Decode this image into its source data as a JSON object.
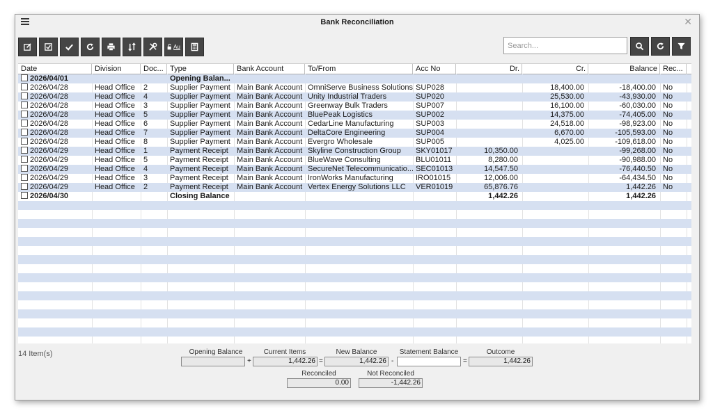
{
  "window": {
    "title": "Bank Reconciliation"
  },
  "toolbar": {
    "buttons": [
      {
        "name": "edit-button",
        "icon": "edit-icon"
      },
      {
        "name": "check-square-button",
        "icon": "checkbox-icon"
      },
      {
        "name": "confirm-button",
        "icon": "checkmark-icon"
      },
      {
        "name": "refresh-button",
        "icon": "refresh-icon"
      },
      {
        "name": "print-button",
        "icon": "printer-icon"
      },
      {
        "name": "sort-button",
        "icon": "sort-icon"
      },
      {
        "name": "tools-button",
        "icon": "tools-icon"
      },
      {
        "name": "auto-unlock-button",
        "icon": "unlock-icon",
        "label": "Au"
      },
      {
        "name": "calculator-button",
        "icon": "calculator-icon"
      }
    ],
    "search_placeholder": "Search...",
    "right_buttons": [
      {
        "name": "search-button",
        "icon": "search-icon"
      },
      {
        "name": "reload-button",
        "icon": "refresh-icon"
      },
      {
        "name": "filter-button",
        "icon": "filter-icon"
      }
    ]
  },
  "columns": [
    "Date",
    "Division",
    "Doc...",
    "Type",
    "Bank Account",
    "To/From",
    "Acc No",
    "Dr.",
    "Cr.",
    "Balance",
    "Rec..."
  ],
  "rows": [
    {
      "date": "2026/04/01",
      "division": "",
      "doc": "",
      "type": "Opening Balan...",
      "bank": "",
      "to": "",
      "acc": "",
      "dr": "",
      "cr": "",
      "balance": "",
      "rec": "",
      "bold": true
    },
    {
      "date": "2026/04/28",
      "division": "Head Office",
      "doc": "2",
      "type": "Supplier Payment",
      "bank": "Main Bank Account",
      "to": "OmniServe Business Solutions",
      "acc": "SUP028",
      "dr": "",
      "cr": "18,400.00",
      "balance": "-18,400.00",
      "rec": "No"
    },
    {
      "date": "2026/04/28",
      "division": "Head Office",
      "doc": "4",
      "type": "Supplier Payment",
      "bank": "Main Bank Account",
      "to": "Unity Industrial Traders",
      "acc": "SUP020",
      "dr": "",
      "cr": "25,530.00",
      "balance": "-43,930.00",
      "rec": "No"
    },
    {
      "date": "2026/04/28",
      "division": "Head Office",
      "doc": "3",
      "type": "Supplier Payment",
      "bank": "Main Bank Account",
      "to": "Greenway Bulk Traders",
      "acc": "SUP007",
      "dr": "",
      "cr": "16,100.00",
      "balance": "-60,030.00",
      "rec": "No"
    },
    {
      "date": "2026/04/28",
      "division": "Head Office",
      "doc": "5",
      "type": "Supplier Payment",
      "bank": "Main Bank Account",
      "to": "BluePeak Logistics",
      "acc": "SUP002",
      "dr": "",
      "cr": "14,375.00",
      "balance": "-74,405.00",
      "rec": "No"
    },
    {
      "date": "2026/04/28",
      "division": "Head Office",
      "doc": "6",
      "type": "Supplier Payment",
      "bank": "Main Bank Account",
      "to": "CedarLine Manufacturing",
      "acc": "SUP003",
      "dr": "",
      "cr": "24,518.00",
      "balance": "-98,923.00",
      "rec": "No"
    },
    {
      "date": "2026/04/28",
      "division": "Head Office",
      "doc": "7",
      "type": "Supplier Payment",
      "bank": "Main Bank Account",
      "to": "DeltaCore Engineering",
      "acc": "SUP004",
      "dr": "",
      "cr": "6,670.00",
      "balance": "-105,593.00",
      "rec": "No"
    },
    {
      "date": "2026/04/28",
      "division": "Head Office",
      "doc": "8",
      "type": "Supplier Payment",
      "bank": "Main Bank Account",
      "to": "Evergro Wholesale",
      "acc": "SUP005",
      "dr": "",
      "cr": "4,025.00",
      "balance": "-109,618.00",
      "rec": "No"
    },
    {
      "date": "2026/04/29",
      "division": "Head Office",
      "doc": "1",
      "type": "Payment Receipt",
      "bank": "Main Bank Account",
      "to": "Skyline Construction Group",
      "acc": "SKY01017",
      "dr": "10,350.00",
      "cr": "",
      "balance": "-99,268.00",
      "rec": "No"
    },
    {
      "date": "2026/04/29",
      "division": "Head Office",
      "doc": "5",
      "type": "Payment Receipt",
      "bank": "Main Bank Account",
      "to": "BlueWave Consulting",
      "acc": "BLU01011",
      "dr": "8,280.00",
      "cr": "",
      "balance": "-90,988.00",
      "rec": "No"
    },
    {
      "date": "2026/04/29",
      "division": "Head Office",
      "doc": "4",
      "type": "Payment Receipt",
      "bank": "Main Bank Account",
      "to": "SecureNet Telecommunicatio...",
      "acc": "SEC01013",
      "dr": "14,547.50",
      "cr": "",
      "balance": "-76,440.50",
      "rec": "No"
    },
    {
      "date": "2026/04/29",
      "division": "Head Office",
      "doc": "3",
      "type": "Payment Receipt",
      "bank": "Main Bank Account",
      "to": "IronWorks Manufacturing",
      "acc": "IRO01015",
      "dr": "12,006.00",
      "cr": "",
      "balance": "-64,434.50",
      "rec": "No"
    },
    {
      "date": "2026/04/29",
      "division": "Head Office",
      "doc": "2",
      "type": "Payment Receipt",
      "bank": "Main Bank Account",
      "to": "Vertex Energy Solutions LLC",
      "acc": "VER01019",
      "dr": "65,876.76",
      "cr": "",
      "balance": "1,442.26",
      "rec": "No"
    },
    {
      "date": "2026/04/30",
      "division": "",
      "doc": "",
      "type": "Closing Balance",
      "bank": "",
      "to": "",
      "acc": "",
      "dr": "1,442.26",
      "cr": "",
      "balance": "1,442.26",
      "rec": "",
      "bold": true
    }
  ],
  "empty_rows": 16,
  "footer": {
    "count": "14 Item(s)",
    "opening_balance_label": "Opening Balance",
    "opening_balance": "",
    "current_items_label": "Current Items",
    "current_items": "1,442.26",
    "new_balance_label": "New Balance",
    "new_balance": "1,442.26",
    "statement_balance_label": "Statement Balance",
    "statement_balance": "",
    "outcome_label": "Outcome",
    "outcome": "1,442.26",
    "reconciled_label": "Reconciled",
    "reconciled": "0.00",
    "not_reconciled_label": "Not Reconciled",
    "not_reconciled": "-1,442.26",
    "op_plus": "+",
    "op_eq1": "=",
    "op_minus": "-",
    "op_eq2": "="
  },
  "colors": {
    "row_alt": "#d6e0f1",
    "toolbar_button": "#454545"
  }
}
